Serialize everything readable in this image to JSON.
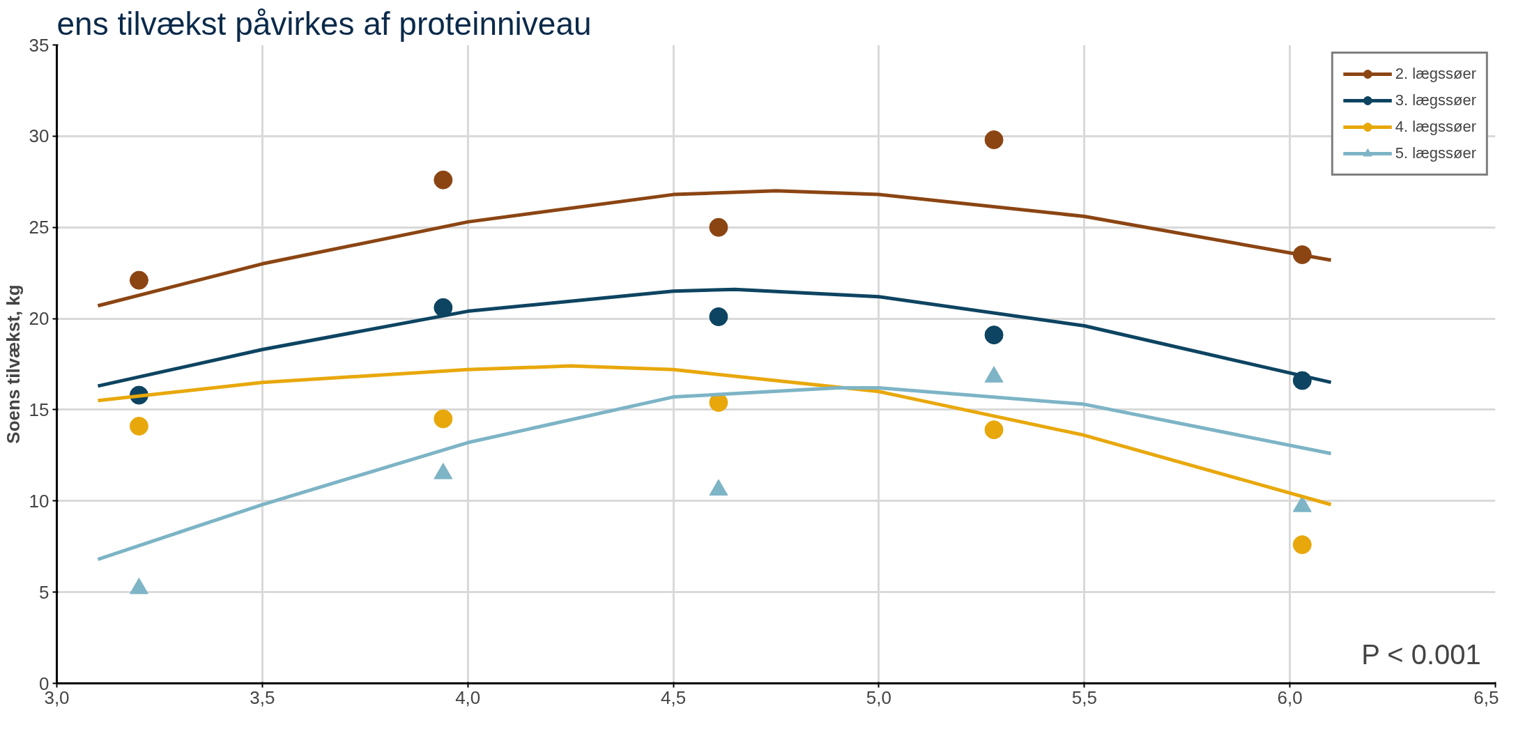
{
  "chart_data": {
    "type": "scatter",
    "title": "ens tilvækst påvirkes af proteinniveau",
    "ylabel": "Soens tilvækst, kg",
    "xlim": [
      3.0,
      6.5
    ],
    "xticks": [
      {
        "value": 3.0,
        "label": "3,0"
      },
      {
        "value": 3.5,
        "label": "3,5"
      },
      {
        "value": 4.0,
        "label": "4,0"
      },
      {
        "value": 4.5,
        "label": "4,5"
      },
      {
        "value": 5.0,
        "label": "5,0"
      },
      {
        "value": 5.5,
        "label": "5,5"
      },
      {
        "value": 6.0,
        "label": "6,0"
      },
      {
        "value": 6.5,
        "label": "6,5"
      }
    ],
    "ylim": [
      0,
      35
    ],
    "yticks": [
      0,
      5,
      10,
      15,
      20,
      25,
      30,
      35
    ],
    "grid": true,
    "legend": "top right",
    "annotations": [
      "P < 0.001"
    ],
    "series": [
      {
        "name": "2. lægssøer",
        "marker": "circle",
        "color": "#8b4513",
        "x": [
          3.2,
          3.94,
          4.61,
          5.28,
          6.03
        ],
        "values": [
          22.1,
          27.6,
          25.0,
          29.8,
          23.5
        ]
      },
      {
        "name": "3. lægssøer",
        "marker": "circle",
        "color": "#0d4461",
        "x": [
          3.2,
          3.94,
          4.61,
          5.28,
          6.03
        ],
        "values": [
          15.8,
          20.6,
          20.1,
          19.1,
          16.6
        ]
      },
      {
        "name": "4. lægssøer",
        "marker": "circle",
        "color": "#e8a80c",
        "x": [
          3.2,
          3.94,
          4.61,
          5.28,
          6.03
        ],
        "values": [
          14.1,
          14.5,
          15.4,
          13.9,
          7.6
        ]
      },
      {
        "name": "5. lægssøer",
        "marker": "triangle",
        "color": "#7db4c6",
        "x": [
          3.2,
          3.94,
          4.61,
          5.28,
          6.03
        ],
        "values": [
          5.2,
          11.5,
          10.6,
          16.8,
          9.7
        ]
      },
      {
        "type": "line",
        "color": "#8b4513",
        "x": [
          3.1,
          3.5,
          4.0,
          4.5,
          4.75,
          5.0,
          5.5,
          6.1
        ],
        "values": [
          20.7,
          23.0,
          25.3,
          26.8,
          27.0,
          26.8,
          25.6,
          23.2
        ]
      },
      {
        "type": "line",
        "color": "#0d4461",
        "x": [
          3.1,
          3.5,
          4.0,
          4.5,
          4.65,
          5.0,
          5.5,
          6.1
        ],
        "values": [
          16.3,
          18.3,
          20.4,
          21.5,
          21.6,
          21.2,
          19.6,
          16.5
        ]
      },
      {
        "type": "line",
        "color": "#e8a80c",
        "x": [
          3.1,
          3.5,
          4.0,
          4.25,
          4.5,
          5.0,
          5.5,
          6.1
        ],
        "values": [
          15.5,
          16.5,
          17.2,
          17.4,
          17.2,
          16.0,
          13.6,
          9.8
        ]
      },
      {
        "type": "line",
        "color": "#7db4c6",
        "x": [
          3.1,
          3.5,
          4.0,
          4.5,
          4.9,
          5.0,
          5.5,
          6.1
        ],
        "values": [
          6.8,
          9.8,
          13.2,
          15.7,
          16.2,
          16.2,
          15.3,
          12.6
        ]
      }
    ]
  }
}
